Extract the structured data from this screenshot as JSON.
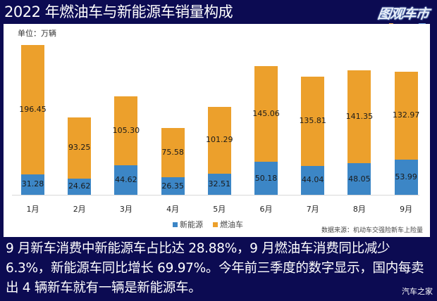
{
  "header": {
    "title": "2022 年燃油车与新能源车销量构成",
    "logo": "图观车市"
  },
  "chart_data": {
    "type": "bar",
    "stacked": true,
    "title": "2022 年燃油车与新能源车销量构成",
    "unit_label": "单位：万辆",
    "categories": [
      "1月",
      "2月",
      "3月",
      "4月",
      "5月",
      "6月",
      "7月",
      "8月",
      "9月"
    ],
    "series": [
      {
        "name": "新能源",
        "color": "#3c86c6",
        "values": [
          31.28,
          24.62,
          44.62,
          26.35,
          32.51,
          50.18,
          44.04,
          48.05,
          53.99
        ]
      },
      {
        "name": "燃油车",
        "color": "#eca02c",
        "values": [
          196.45,
          93.25,
          105.3,
          75.58,
          101.29,
          145.06,
          135.81,
          141.35,
          132.97
        ]
      }
    ],
    "value_labels": {
      "新能源": [
        "31.28",
        "24.62",
        "44.62",
        "26.35",
        "32.51",
        "50.18",
        "44.04",
        "48.05",
        "53.99"
      ],
      "燃油车": [
        "196.45",
        "93.25",
        "105.30",
        "75.58",
        "101.29",
        "145.06",
        "135.81",
        "141.35",
        "132.97"
      ]
    },
    "legend": [
      "新能源",
      "燃油车"
    ],
    "legend_position": "bottom",
    "grid": false,
    "xlabel": "",
    "ylabel": "",
    "source": "数据来源：机动车交强险新车上险量"
  },
  "caption": "9 月新车消费中新能源车占比达 28.88%，9 月燃油车消费同比减少 6.3%，新能源车同比增长 69.97%。今年前三季度的数字显示，国内每卖出 4 辆新车就有一辆是新能源车。",
  "watermark": "汽车之家"
}
